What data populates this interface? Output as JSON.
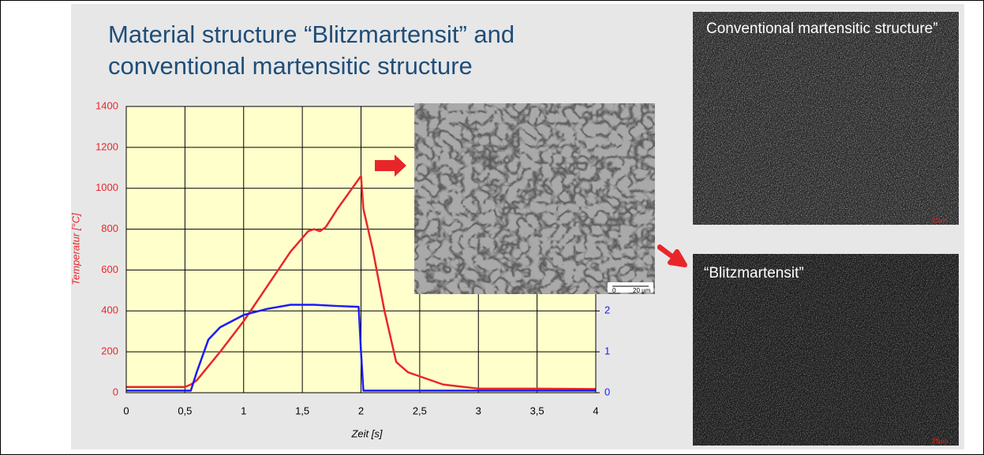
{
  "chart_data": {
    "type": "line",
    "title": "Material structure “Blitzmartensit” and conventional martensitic structure",
    "x_label": "Zeit  [s]",
    "y_label": "Temperatur  [°C]",
    "xlim": [
      0,
      4
    ],
    "xticks": [
      0,
      {
        "value": 0.5,
        "label": "0,5"
      },
      1,
      {
        "value": 1.5,
        "label": "1,5"
      },
      2,
      {
        "value": 2.5,
        "label": "2,5"
      },
      3,
      {
        "value": 3.5,
        "label": "3,5"
      },
      4
    ],
    "ylim": [
      0,
      1400
    ],
    "yticks": [
      0,
      200,
      400,
      600,
      800,
      1000,
      1200,
      1400
    ],
    "y2lim": [
      0,
      7
    ],
    "y2ticks": [
      0,
      1,
      2
    ],
    "grid": true,
    "series": [
      {
        "color": "#e8262a",
        "x": [
          0,
          0.5,
          0.55,
          0.6,
          0.8,
          1,
          1.2,
          1.4,
          1.55,
          1.6,
          1.65,
          1.7,
          1.8,
          2.0,
          2.02,
          2.1,
          2.2,
          2.3,
          2.4,
          2.5,
          2.7,
          3,
          3.5,
          4
        ],
        "values": [
          28,
          28,
          40,
          60,
          200,
          350,
          520,
          690,
          790,
          800,
          790,
          810,
          900,
          1060,
          900,
          700,
          400,
          150,
          100,
          80,
          40,
          20,
          20,
          18
        ]
      },
      {
        "color": "#1a1aff",
        "axis": "y2",
        "x": [
          0,
          0.55,
          0.6,
          0.7,
          0.8,
          1,
          1.2,
          1.4,
          1.6,
          1.8,
          1.98,
          2.0,
          2.02,
          4
        ],
        "values": [
          0.05,
          0.05,
          0.5,
          1.3,
          1.6,
          1.9,
          2.05,
          2.15,
          2.15,
          2.12,
          2.1,
          1.0,
          0.05,
          0.05
        ]
      }
    ]
  },
  "sem_image": {
    "scale_start": "0",
    "scale_label": "20 µm"
  },
  "images": [
    {
      "caption": "Conventional martensitic structure”",
      "scale": "25µm"
    },
    {
      "caption": "“Blitzmartensit”",
      "scale": "25µm"
    }
  ]
}
